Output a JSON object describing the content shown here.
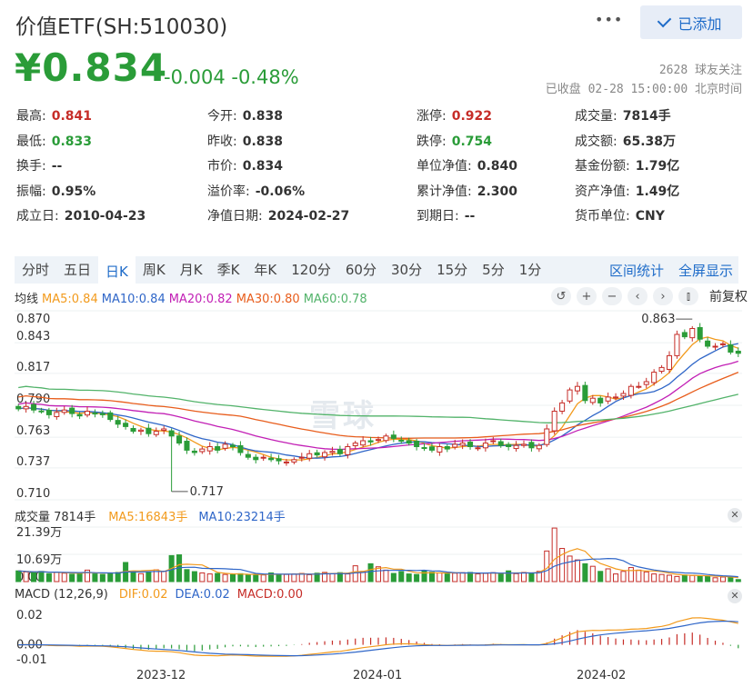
{
  "header": {
    "title": "价值ETF(SH:510030)",
    "more_label": "•••",
    "add_label": "已添加"
  },
  "quote": {
    "price": "¥0.834",
    "change": "-0.004 -0.48%",
    "followers": "2628 球友关注",
    "status_time": "已收盘 02-28 15:00:00 北京时间",
    "color_down": "#2a9c38",
    "color_up": "#c62d28"
  },
  "stats": [
    [
      {
        "label": "最高:",
        "value": "0.841",
        "tone": "red"
      },
      {
        "label": "今开:",
        "value": "0.838",
        "tone": ""
      },
      {
        "label": "涨停:",
        "value": "0.922",
        "tone": "red"
      },
      {
        "label": "成交量:",
        "value": "7814手",
        "tone": ""
      }
    ],
    [
      {
        "label": "最低:",
        "value": "0.833",
        "tone": "green"
      },
      {
        "label": "昨收:",
        "value": "0.838",
        "tone": ""
      },
      {
        "label": "跌停:",
        "value": "0.754",
        "tone": "green"
      },
      {
        "label": "成交额:",
        "value": "65.38万",
        "tone": ""
      }
    ],
    [
      {
        "label": "换手:",
        "value": "--",
        "tone": ""
      },
      {
        "label": "市价:",
        "value": "0.834",
        "tone": ""
      },
      {
        "label": "单位净值:",
        "value": "0.840",
        "tone": ""
      },
      {
        "label": "基金份额:",
        "value": "1.79亿",
        "tone": ""
      }
    ],
    [
      {
        "label": "振幅:",
        "value": "0.95%",
        "tone": ""
      },
      {
        "label": "溢价率:",
        "value": "-0.06%",
        "tone": ""
      },
      {
        "label": "累计净值:",
        "value": "2.300",
        "tone": ""
      },
      {
        "label": "资产净值:",
        "value": "1.49亿",
        "tone": ""
      }
    ],
    [
      {
        "label": "成立日:",
        "value": "2010-04-23",
        "tone": ""
      },
      {
        "label": "净值日期:",
        "value": "2024-02-27",
        "tone": ""
      },
      {
        "label": "到期日:",
        "value": "--",
        "tone": ""
      },
      {
        "label": "货币单位:",
        "value": "CNY",
        "tone": ""
      }
    ]
  ],
  "tabs": [
    "分时",
    "五日",
    "日K",
    "周K",
    "月K",
    "季K",
    "年K",
    "120分",
    "60分",
    "30分",
    "15分",
    "5分",
    "1分"
  ],
  "active_tab": "日K",
  "tab_links": [
    "区间统计",
    "全屏显示"
  ],
  "toolbar": {
    "icons": [
      "undo-icon",
      "zoom-in-icon",
      "zoom-out-icon",
      "scroll-left-icon",
      "scroll-right-icon",
      "candle-icon"
    ],
    "adjust_label": "前复权"
  },
  "ma_legend": {
    "title": "均线",
    "items": [
      {
        "label": "MA5:0.84",
        "color": "#f29a1c"
      },
      {
        "label": "MA10:0.84",
        "color": "#2f66c8"
      },
      {
        "label": "MA20:0.82",
        "color": "#c21fb5"
      },
      {
        "label": "MA30:0.80",
        "color": "#e85d1c"
      },
      {
        "label": "MA60:0.78",
        "color": "#52b36a"
      }
    ]
  },
  "price_axis": [
    "0.870",
    "0.843",
    "0.817",
    "0.790",
    "0.763",
    "0.737",
    "0.710"
  ],
  "annotations": {
    "high": "0.863",
    "low": "0.717"
  },
  "watermark": "雪球",
  "volume_legend": {
    "title": "成交量 7814手",
    "items": [
      {
        "label": "MA5:16843手",
        "color": "#f29a1c"
      },
      {
        "label": "MA10:23214手",
        "color": "#2f66c8"
      }
    ]
  },
  "volume_axis": [
    "21.39万",
    "10.69万",
    "0.00"
  ],
  "macd_legend": {
    "title": "MACD (12,26,9)",
    "items": [
      {
        "label": "DIF:0.02",
        "color": "#f29a1c"
      },
      {
        "label": "DEA:0.02",
        "color": "#2f66c8"
      },
      {
        "label": "MACD:0.00",
        "color": "#c62d28"
      }
    ]
  },
  "macd_axis": [
    "0.02",
    "0.00",
    "-0.01"
  ],
  "x_axis": [
    "2023-12",
    "2024-01",
    "2024-02"
  ],
  "chart_data": {
    "type": "candlestick",
    "y_range": [
      0.71,
      0.87
    ],
    "closes": [
      0.787,
      0.789,
      0.786,
      0.785,
      0.782,
      0.784,
      0.786,
      0.783,
      0.781,
      0.785,
      0.783,
      0.782,
      0.778,
      0.774,
      0.772,
      0.768,
      0.769,
      0.766,
      0.768,
      0.77,
      0.764,
      0.758,
      0.752,
      0.75,
      0.753,
      0.755,
      0.752,
      0.757,
      0.755,
      0.75,
      0.746,
      0.744,
      0.746,
      0.744,
      0.743,
      0.742,
      0.744,
      0.746,
      0.749,
      0.748,
      0.75,
      0.751,
      0.749,
      0.755,
      0.758,
      0.76,
      0.759,
      0.761,
      0.764,
      0.762,
      0.76,
      0.758,
      0.755,
      0.754,
      0.752,
      0.755,
      0.753,
      0.757,
      0.758,
      0.755,
      0.754,
      0.758,
      0.76,
      0.756,
      0.755,
      0.756,
      0.757,
      0.754,
      0.756,
      0.77,
      0.785,
      0.792,
      0.803,
      0.806,
      0.794,
      0.796,
      0.792,
      0.797,
      0.797,
      0.8,
      0.806,
      0.806,
      0.81,
      0.818,
      0.822,
      0.832,
      0.85,
      0.848,
      0.855,
      0.846,
      0.84,
      0.84,
      0.842,
      0.835,
      0.834
    ],
    "volumes": [
      4.2,
      3.8,
      3.5,
      4.0,
      3.1,
      3.6,
      3.3,
      2.9,
      3.4,
      4.5,
      3.0,
      2.8,
      3.2,
      3.6,
      7.5,
      3.9,
      3.1,
      3.8,
      4.6,
      4.1,
      10.2,
      10.5,
      4.7,
      3.9,
      3.4,
      3.0,
      3.2,
      2.8,
      2.7,
      3.1,
      2.5,
      2.9,
      2.6,
      3.4,
      2.9,
      2.8,
      3.0,
      3.2,
      2.7,
      3.3,
      3.6,
      3.1,
      3.5,
      3.0,
      6.2,
      4.0,
      7.0,
      5.8,
      4.5,
      3.2,
      3.9,
      3.0,
      2.8,
      4.1,
      3.7,
      3.4,
      3.0,
      3.3,
      3.5,
      3.6,
      3.0,
      3.2,
      3.5,
      2.9,
      4.2,
      3.1,
      3.6,
      3.2,
      4.0,
      12.0,
      21.0,
      13.0,
      10.0,
      8.5,
      7.0,
      6.0,
      4.0,
      5.0,
      3.0,
      4.0,
      5.5,
      4.5,
      3.8,
      3.0,
      2.8,
      2.5,
      2.0,
      2.6,
      2.4,
      2.2,
      2.0,
      1.5,
      1.8,
      1.6,
      0.8
    ],
    "volume_range": [
      0,
      21.39
    ]
  }
}
